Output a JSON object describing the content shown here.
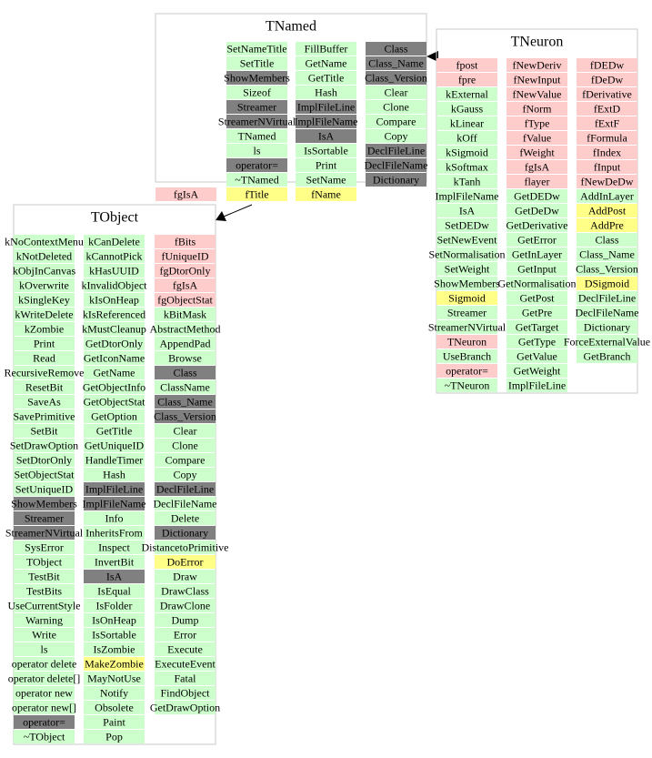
{
  "classes": [
    {
      "name": "TNamed",
      "columns": [
        [
          {
            "text": "SetNameTitle",
            "kind": "method"
          },
          {
            "text": "SetTitle",
            "kind": "method"
          },
          {
            "text": "ShowMembers",
            "kind": "inherited"
          },
          {
            "text": "Sizeof",
            "kind": "method"
          },
          {
            "text": "Streamer",
            "kind": "inherited"
          },
          {
            "text": "StreamerNVirtual",
            "kind": "inherited"
          },
          {
            "text": "TNamed",
            "kind": "method"
          },
          {
            "text": "ls",
            "kind": "method"
          },
          {
            "text": "operator=",
            "kind": "inherited"
          },
          {
            "text": "~TNamed",
            "kind": "method"
          },
          {
            "text": "fTitle",
            "kind": "highlight"
          }
        ],
        [
          {
            "text": "FillBuffer",
            "kind": "method"
          },
          {
            "text": "GetName",
            "kind": "method"
          },
          {
            "text": "GetTitle",
            "kind": "method"
          },
          {
            "text": "Hash",
            "kind": "method"
          },
          {
            "text": "ImplFileLine",
            "kind": "inherited"
          },
          {
            "text": "ImplFileName",
            "kind": "inherited"
          },
          {
            "text": "IsA",
            "kind": "inherited"
          },
          {
            "text": "IsSortable",
            "kind": "method"
          },
          {
            "text": "Print",
            "kind": "method"
          },
          {
            "text": "SetName",
            "kind": "method"
          },
          {
            "text": "fName",
            "kind": "highlight"
          }
        ],
        [
          {
            "text": "Class",
            "kind": "inherited"
          },
          {
            "text": "Class_Name",
            "kind": "inherited"
          },
          {
            "text": "Class_Version",
            "kind": "inherited"
          },
          {
            "text": "Clear",
            "kind": "method"
          },
          {
            "text": "Clone",
            "kind": "method"
          },
          {
            "text": "Compare",
            "kind": "method"
          },
          {
            "text": "Copy",
            "kind": "method"
          },
          {
            "text": "DeclFileLine",
            "kind": "inherited"
          },
          {
            "text": "DeclFileName",
            "kind": "inherited"
          },
          {
            "text": "Dictionary",
            "kind": "inherited"
          }
        ]
      ],
      "outside": [
        {
          "text": "fgIsA",
          "kind": "data"
        }
      ]
    },
    {
      "name": "TNeuron",
      "columns": [
        [
          {
            "text": "fpost",
            "kind": "data"
          },
          {
            "text": "fpre",
            "kind": "data"
          },
          {
            "text": "kExternal",
            "kind": "method"
          },
          {
            "text": "kGauss",
            "kind": "method"
          },
          {
            "text": "kLinear",
            "kind": "method"
          },
          {
            "text": "kOff",
            "kind": "method"
          },
          {
            "text": "kSigmoid",
            "kind": "method"
          },
          {
            "text": "kSoftmax",
            "kind": "method"
          },
          {
            "text": "kTanh",
            "kind": "method"
          },
          {
            "text": "ImplFileName",
            "kind": "method"
          },
          {
            "text": "IsA",
            "kind": "method"
          },
          {
            "text": "SetDEDw",
            "kind": "method"
          },
          {
            "text": "SetNewEvent",
            "kind": "method"
          },
          {
            "text": "SetNormalisation",
            "kind": "method"
          },
          {
            "text": "SetWeight",
            "kind": "method"
          },
          {
            "text": "ShowMembers",
            "kind": "method"
          },
          {
            "text": "Sigmoid",
            "kind": "highlight"
          },
          {
            "text": "Streamer",
            "kind": "method"
          },
          {
            "text": "StreamerNVirtual",
            "kind": "method"
          },
          {
            "text": "TNeuron",
            "kind": "data"
          },
          {
            "text": "UseBranch",
            "kind": "method"
          },
          {
            "text": "operator=",
            "kind": "data"
          },
          {
            "text": "~TNeuron",
            "kind": "method"
          }
        ],
        [
          {
            "text": "fNewDeriv",
            "kind": "data"
          },
          {
            "text": "fNewInput",
            "kind": "data"
          },
          {
            "text": "fNewValue",
            "kind": "data"
          },
          {
            "text": "fNorm",
            "kind": "data"
          },
          {
            "text": "fType",
            "kind": "data"
          },
          {
            "text": "fValue",
            "kind": "data"
          },
          {
            "text": "fWeight",
            "kind": "data"
          },
          {
            "text": "fgIsA",
            "kind": "data"
          },
          {
            "text": "flayer",
            "kind": "data"
          },
          {
            "text": "GetDEDw",
            "kind": "method"
          },
          {
            "text": "GetDeDw",
            "kind": "method"
          },
          {
            "text": "GetDerivative",
            "kind": "method"
          },
          {
            "text": "GetError",
            "kind": "method"
          },
          {
            "text": "GetInLayer",
            "kind": "method"
          },
          {
            "text": "GetInput",
            "kind": "method"
          },
          {
            "text": "GetNormalisation",
            "kind": "method"
          },
          {
            "text": "GetPost",
            "kind": "method"
          },
          {
            "text": "GetPre",
            "kind": "method"
          },
          {
            "text": "GetTarget",
            "kind": "method"
          },
          {
            "text": "GetType",
            "kind": "method"
          },
          {
            "text": "GetValue",
            "kind": "method"
          },
          {
            "text": "GetWeight",
            "kind": "method"
          },
          {
            "text": "ImplFileLine",
            "kind": "method"
          }
        ],
        [
          {
            "text": "fDEDw",
            "kind": "data"
          },
          {
            "text": "fDeDw",
            "kind": "data"
          },
          {
            "text": "fDerivative",
            "kind": "data"
          },
          {
            "text": "fExtD",
            "kind": "data"
          },
          {
            "text": "fExtF",
            "kind": "data"
          },
          {
            "text": "fFormula",
            "kind": "data"
          },
          {
            "text": "fIndex",
            "kind": "data"
          },
          {
            "text": "fInput",
            "kind": "data"
          },
          {
            "text": "fNewDeDw",
            "kind": "data"
          },
          {
            "text": "AddInLayer",
            "kind": "method"
          },
          {
            "text": "AddPost",
            "kind": "highlight"
          },
          {
            "text": "AddPre",
            "kind": "highlight"
          },
          {
            "text": "Class",
            "kind": "method"
          },
          {
            "text": "Class_Name",
            "kind": "method"
          },
          {
            "text": "Class_Version",
            "kind": "method"
          },
          {
            "text": "DSigmoid",
            "kind": "highlight"
          },
          {
            "text": "DeclFileLine",
            "kind": "method"
          },
          {
            "text": "DeclFileName",
            "kind": "method"
          },
          {
            "text": "Dictionary",
            "kind": "method"
          },
          {
            "text": "ForceExternalValue",
            "kind": "method"
          },
          {
            "text": "GetBranch",
            "kind": "method"
          }
        ]
      ]
    },
    {
      "name": "TObject",
      "columns": [
        [
          {
            "text": "kNoContextMenu",
            "kind": "method"
          },
          {
            "text": "kNotDeleted",
            "kind": "method"
          },
          {
            "text": "kObjInCanvas",
            "kind": "method"
          },
          {
            "text": "kOverwrite",
            "kind": "method"
          },
          {
            "text": "kSingleKey",
            "kind": "method"
          },
          {
            "text": "kWriteDelete",
            "kind": "method"
          },
          {
            "text": "kZombie",
            "kind": "method"
          },
          {
            "text": "Print",
            "kind": "method"
          },
          {
            "text": "Read",
            "kind": "method"
          },
          {
            "text": "RecursiveRemove",
            "kind": "method"
          },
          {
            "text": "ResetBit",
            "kind": "method"
          },
          {
            "text": "SaveAs",
            "kind": "method"
          },
          {
            "text": "SavePrimitive",
            "kind": "method"
          },
          {
            "text": "SetBit",
            "kind": "method"
          },
          {
            "text": "SetDrawOption",
            "kind": "method"
          },
          {
            "text": "SetDtorOnly",
            "kind": "method"
          },
          {
            "text": "SetObjectStat",
            "kind": "method"
          },
          {
            "text": "SetUniqueID",
            "kind": "method"
          },
          {
            "text": "ShowMembers",
            "kind": "inherited"
          },
          {
            "text": "Streamer",
            "kind": "inherited"
          },
          {
            "text": "StreamerNVirtual",
            "kind": "inherited"
          },
          {
            "text": "SysError",
            "kind": "method"
          },
          {
            "text": "TObject",
            "kind": "method"
          },
          {
            "text": "TestBit",
            "kind": "method"
          },
          {
            "text": "TestBits",
            "kind": "method"
          },
          {
            "text": "UseCurrentStyle",
            "kind": "method"
          },
          {
            "text": "Warning",
            "kind": "method"
          },
          {
            "text": "Write",
            "kind": "method"
          },
          {
            "text": "ls",
            "kind": "method"
          },
          {
            "text": "operator delete",
            "kind": "method"
          },
          {
            "text": "operator delete[]",
            "kind": "method"
          },
          {
            "text": "operator new",
            "kind": "method"
          },
          {
            "text": "operator new[]",
            "kind": "method"
          },
          {
            "text": "operator=",
            "kind": "inherited"
          },
          {
            "text": "~TObject",
            "kind": "method"
          }
        ],
        [
          {
            "text": "kCanDelete",
            "kind": "method"
          },
          {
            "text": "kCannotPick",
            "kind": "method"
          },
          {
            "text": "kHasUUID",
            "kind": "method"
          },
          {
            "text": "kInvalidObject",
            "kind": "method"
          },
          {
            "text": "kIsOnHeap",
            "kind": "method"
          },
          {
            "text": "kIsReferenced",
            "kind": "method"
          },
          {
            "text": "kMustCleanup",
            "kind": "method"
          },
          {
            "text": "GetDtorOnly",
            "kind": "method"
          },
          {
            "text": "GetIconName",
            "kind": "method"
          },
          {
            "text": "GetName",
            "kind": "method"
          },
          {
            "text": "GetObjectInfo",
            "kind": "method"
          },
          {
            "text": "GetObjectStat",
            "kind": "method"
          },
          {
            "text": "GetOption",
            "kind": "method"
          },
          {
            "text": "GetTitle",
            "kind": "method"
          },
          {
            "text": "GetUniqueID",
            "kind": "method"
          },
          {
            "text": "HandleTimer",
            "kind": "method"
          },
          {
            "text": "Hash",
            "kind": "method"
          },
          {
            "text": "ImplFileLine",
            "kind": "inherited"
          },
          {
            "text": "ImplFileName",
            "kind": "inherited"
          },
          {
            "text": "Info",
            "kind": "method"
          },
          {
            "text": "InheritsFrom",
            "kind": "method"
          },
          {
            "text": "Inspect",
            "kind": "method"
          },
          {
            "text": "InvertBit",
            "kind": "method"
          },
          {
            "text": "IsA",
            "kind": "inherited"
          },
          {
            "text": "IsEqual",
            "kind": "method"
          },
          {
            "text": "IsFolder",
            "kind": "method"
          },
          {
            "text": "IsOnHeap",
            "kind": "method"
          },
          {
            "text": "IsSortable",
            "kind": "method"
          },
          {
            "text": "IsZombie",
            "kind": "method"
          },
          {
            "text": "MakeZombie",
            "kind": "highlight"
          },
          {
            "text": "MayNotUse",
            "kind": "method"
          },
          {
            "text": "Notify",
            "kind": "method"
          },
          {
            "text": "Obsolete",
            "kind": "method"
          },
          {
            "text": "Paint",
            "kind": "method"
          },
          {
            "text": "Pop",
            "kind": "method"
          }
        ],
        [
          {
            "text": "fBits",
            "kind": "data"
          },
          {
            "text": "fUniqueID",
            "kind": "data"
          },
          {
            "text": "fgDtorOnly",
            "kind": "data"
          },
          {
            "text": "fgIsA",
            "kind": "data"
          },
          {
            "text": "fgObjectStat",
            "kind": "data"
          },
          {
            "text": "kBitMask",
            "kind": "method"
          },
          {
            "text": "AbstractMethod",
            "kind": "method"
          },
          {
            "text": "AppendPad",
            "kind": "method"
          },
          {
            "text": "Browse",
            "kind": "method"
          },
          {
            "text": "Class",
            "kind": "inherited"
          },
          {
            "text": "ClassName",
            "kind": "method"
          },
          {
            "text": "Class_Name",
            "kind": "inherited"
          },
          {
            "text": "Class_Version",
            "kind": "inherited"
          },
          {
            "text": "Clear",
            "kind": "method"
          },
          {
            "text": "Clone",
            "kind": "method"
          },
          {
            "text": "Compare",
            "kind": "method"
          },
          {
            "text": "Copy",
            "kind": "method"
          },
          {
            "text": "DeclFileLine",
            "kind": "inherited"
          },
          {
            "text": "DeclFileName",
            "kind": "method"
          },
          {
            "text": "Delete",
            "kind": "method"
          },
          {
            "text": "Dictionary",
            "kind": "inherited"
          },
          {
            "text": "DistancetoPrimitive",
            "kind": "method"
          },
          {
            "text": "DoError",
            "kind": "highlight"
          },
          {
            "text": "Draw",
            "kind": "method"
          },
          {
            "text": "DrawClass",
            "kind": "method"
          },
          {
            "text": "DrawClone",
            "kind": "method"
          },
          {
            "text": "Dump",
            "kind": "method"
          },
          {
            "text": "Error",
            "kind": "method"
          },
          {
            "text": "Execute",
            "kind": "method"
          },
          {
            "text": "ExecuteEvent",
            "kind": "method"
          },
          {
            "text": "Fatal",
            "kind": "method"
          },
          {
            "text": "FindObject",
            "kind": "method"
          },
          {
            "text": "GetDrawOption",
            "kind": "method"
          }
        ]
      ]
    }
  ]
}
